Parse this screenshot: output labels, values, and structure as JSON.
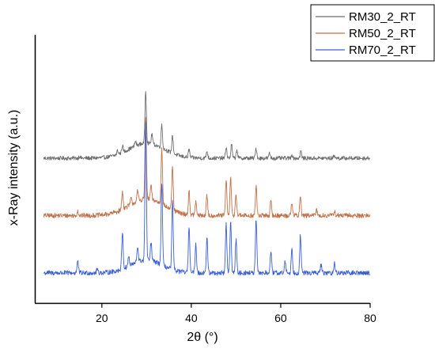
{
  "chart_data": {
    "type": "line",
    "title": "",
    "xlabel": "2θ (°)",
    "ylabel": "x-Ray intensity (a.u.)",
    "xlim": [
      5,
      80
    ],
    "x_ticks": [
      20,
      40,
      60,
      80
    ],
    "y_ticks": [],
    "grid": false,
    "legend_position": "top-right",
    "series": [
      {
        "name": "RM30_2_RT",
        "color": "#6e6e6e",
        "baseline_offset": 2.9,
        "background": {
          "base": 0.0,
          "hump_height": 0.38,
          "hump_center": 30,
          "hump_width": 5.5
        },
        "peaks": [
          [
            15.0,
            0.05
          ],
          [
            23.5,
            0.1
          ],
          [
            24.6,
            0.18
          ],
          [
            27.5,
            0.12
          ],
          [
            29.8,
            1.35
          ],
          [
            31.2,
            0.25
          ],
          [
            33.4,
            0.6
          ],
          [
            35.8,
            0.45
          ],
          [
            39.5,
            0.2
          ],
          [
            43.5,
            0.18
          ],
          [
            47.8,
            0.28
          ],
          [
            49.0,
            0.35
          ],
          [
            50.2,
            0.22
          ],
          [
            54.5,
            0.25
          ],
          [
            57.5,
            0.12
          ],
          [
            62.5,
            0.1
          ],
          [
            64.5,
            0.18
          ],
          [
            72.0,
            0.08
          ]
        ],
        "noise": 0.05
      },
      {
        "name": "RM50_2_RT",
        "color": "#c0714a",
        "baseline_offset": 1.45,
        "background": {
          "base": 0.0,
          "hump_height": 0.42,
          "hump_center": 30,
          "hump_width": 5.5
        },
        "peaks": [
          [
            14.6,
            0.12
          ],
          [
            24.6,
            0.45
          ],
          [
            26.5,
            0.15
          ],
          [
            28.0,
            0.25
          ],
          [
            29.8,
            2.1
          ],
          [
            31.0,
            0.35
          ],
          [
            33.4,
            1.45
          ],
          [
            35.8,
            1.1
          ],
          [
            39.5,
            0.6
          ],
          [
            41.0,
            0.35
          ],
          [
            43.5,
            0.5
          ],
          [
            47.8,
            0.9
          ],
          [
            48.8,
            0.95
          ],
          [
            50.0,
            0.55
          ],
          [
            54.5,
            0.75
          ],
          [
            57.8,
            0.35
          ],
          [
            62.5,
            0.35
          ],
          [
            64.4,
            0.5
          ],
          [
            68.0,
            0.15
          ],
          [
            72.0,
            0.12
          ]
        ],
        "noise": 0.06
      },
      {
        "name": "RM70_2_RT",
        "color": "#3a5fd6",
        "baseline_offset": 0.0,
        "background": {
          "base": 0.0,
          "hump_height": 0.32,
          "hump_center": 30,
          "hump_width": 5.0
        },
        "peaks": [
          [
            14.6,
            0.3
          ],
          [
            19.0,
            0.1
          ],
          [
            24.6,
            0.95
          ],
          [
            26.0,
            0.25
          ],
          [
            28.0,
            0.4
          ],
          [
            29.8,
            3.5
          ],
          [
            31.0,
            0.45
          ],
          [
            33.4,
            2.1
          ],
          [
            35.8,
            1.75
          ],
          [
            39.5,
            1.2
          ],
          [
            41.0,
            0.75
          ],
          [
            43.5,
            0.9
          ],
          [
            47.8,
            1.25
          ],
          [
            48.8,
            1.3
          ],
          [
            50.0,
            0.85
          ],
          [
            54.5,
            1.35
          ],
          [
            57.8,
            0.55
          ],
          [
            61.0,
            0.3
          ],
          [
            62.5,
            0.6
          ],
          [
            64.4,
            0.95
          ],
          [
            69.0,
            0.2
          ],
          [
            72.0,
            0.25
          ]
        ],
        "noise": 0.06
      }
    ]
  }
}
